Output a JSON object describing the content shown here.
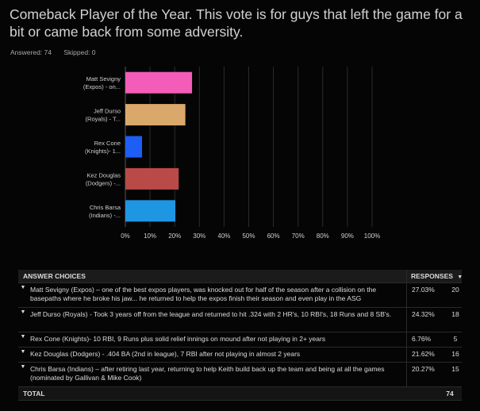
{
  "title": "Comeback Player of the Year. This vote is for guys that left the game for a bit or came back from some adversity.",
  "answered": "Answered: 74",
  "skipped": "Skipped: 0",
  "chart_data": {
    "type": "bar",
    "orientation": "horizontal",
    "categories": [
      [
        "Matt Sevigny",
        "(Expos) - on..."
      ],
      [
        "Jeff Durso",
        "(Royals) - T..."
      ],
      [
        "Rex Cone",
        "(Knights)- 1..."
      ],
      [
        "Kez Douglas",
        "(Dodgers) -..."
      ],
      [
        "Chris Barsa",
        "(Indians) -..."
      ]
    ],
    "values": [
      27.03,
      24.32,
      6.76,
      21.62,
      20.27
    ],
    "colors": [
      "#f35cb8",
      "#dba86c",
      "#1d5ef5",
      "#b94a47",
      "#1f96e2"
    ],
    "xlim": [
      0,
      100
    ],
    "xticks": [
      "0%",
      "10%",
      "20%",
      "30%",
      "40%",
      "50%",
      "60%",
      "70%",
      "80%",
      "90%",
      "100%"
    ],
    "grid": true
  },
  "table": {
    "header_choice": "ANSWER CHOICES",
    "header_responses": "RESPONSES",
    "rows": [
      {
        "choice": "Matt Sevigny (Expos) – one of the best expos players, was knocked out for half of the season after a collision on the basepaths where he broke his jaw... he returned to help the expos finish their season and even play in the ASG",
        "percent": "27.03%",
        "count": "20"
      },
      {
        "choice": "Jeff Durso (Royals) - Took 3 years off from the league and returned to hit .324 with 2 HR's, 10 RBI's, 18 Runs and 8 SB's.",
        "percent": "24.32%",
        "count": "18"
      },
      {
        "choice": "Rex Cone (Knights)- 10 RBI, 9 Runs plus solid relief innings on mound after not playing in 2+ years",
        "percent": "6.76%",
        "count": "5"
      },
      {
        "choice": "Kez Douglas (Dodgers) - .404 BA (2nd in league), 7 RBI after not playing in almost 2 years",
        "percent": "21.62%",
        "count": "16"
      },
      {
        "choice": "Chris Barsa (Indians) – after retiring last year, returning to help Keith build back up the team and being at all the games (nominated by Gallivan & Mike Cook)",
        "percent": "20.27%",
        "count": "15"
      }
    ],
    "total_label": "TOTAL",
    "total_count": "74"
  }
}
